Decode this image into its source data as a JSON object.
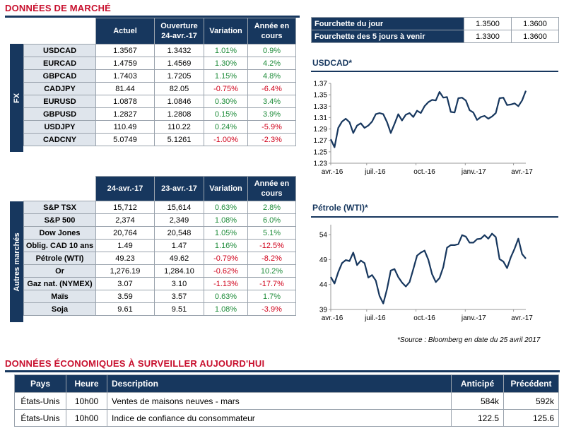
{
  "market_title": "DONNÉES DE MARCHÉ",
  "fx_label": "FX",
  "fx_headers": [
    "Actuel",
    "Ouverture\n24-avr.-17",
    "Variation",
    "Année en\ncours"
  ],
  "fx_rows": [
    {
      "name": "USDCAD",
      "actuel": "1.3567",
      "ouverture": "1.3432",
      "variation": "1.01%",
      "annee": "0.9%"
    },
    {
      "name": "EURCAD",
      "actuel": "1.4759",
      "ouverture": "1.4569",
      "variation": "1.30%",
      "annee": "4.2%"
    },
    {
      "name": "GBPCAD",
      "actuel": "1.7403",
      "ouverture": "1.7205",
      "variation": "1.15%",
      "annee": "4.8%"
    },
    {
      "name": "CADJPY",
      "actuel": "81.44",
      "ouverture": "82.05",
      "variation": "-0.75%",
      "annee": "-6.4%"
    },
    {
      "name": "EURUSD",
      "actuel": "1.0878",
      "ouverture": "1.0846",
      "variation": "0.30%",
      "annee": "3.4%"
    },
    {
      "name": "GBPUSD",
      "actuel": "1.2827",
      "ouverture": "1.2808",
      "variation": "0.15%",
      "annee": "3.9%"
    },
    {
      "name": "USDJPY",
      "actuel": "110.49",
      "ouverture": "110.22",
      "variation": "0.24%",
      "annee": "-5.9%"
    },
    {
      "name": "CADCNY",
      "actuel": "5.0749",
      "ouverture": "5.1261",
      "variation": "-1.00%",
      "annee": "-2.3%"
    }
  ],
  "other_label": "Autres marchés",
  "other_headers": [
    "24-avr.-17",
    "23-avr.-17",
    "Variation",
    "Année en\ncours"
  ],
  "other_rows": [
    {
      "name": "S&P TSX",
      "a": "15,712",
      "b": "15,614",
      "variation": "0.63%",
      "annee": "2.8%"
    },
    {
      "name": "S&P 500",
      "a": "2,374",
      "b": "2,349",
      "variation": "1.08%",
      "annee": "6.0%"
    },
    {
      "name": "Dow Jones",
      "a": "20,764",
      "b": "20,548",
      "variation": "1.05%",
      "annee": "5.1%"
    },
    {
      "name": "Oblig. CAD 10 ans",
      "a": "1.49",
      "b": "1.47",
      "variation": "1.16%",
      "annee": "-12.5%"
    },
    {
      "name": "Pétrole (WTI)",
      "a": "49.23",
      "b": "49.62",
      "variation": "-0.79%",
      "annee": "-8.2%"
    },
    {
      "name": "Or",
      "a": "1,276.19",
      "b": "1,284.10",
      "variation": "-0.62%",
      "annee": "10.2%"
    },
    {
      "name": "Gaz nat. (NYMEX)",
      "a": "3.07",
      "b": "3.10",
      "variation": "-1.13%",
      "annee": "-17.7%"
    },
    {
      "name": "Maïs",
      "a": "3.59",
      "b": "3.57",
      "variation": "0.63%",
      "annee": "1.7%"
    },
    {
      "name": "Soja",
      "a": "9.61",
      "b": "9.51",
      "variation": "1.08%",
      "annee": "-3.9%"
    }
  ],
  "ranges": [
    {
      "label": "Fourchette du jour",
      "low": "1.3500",
      "high": "1.3600"
    },
    {
      "label": "Fourchette des 5 jours à venir",
      "low": "1.3300",
      "high": "1.3600"
    }
  ],
  "source_note": "*Source : Bloomberg en date du  25 avril 2017",
  "eco_title": "DONNÉES ÉCONOMIQUES À SURVEILLER AUJOURD'HUI",
  "eco_headers": [
    "Pays",
    "Heure",
    "Description",
    "Anticipé",
    "Précédent"
  ],
  "eco_rows": [
    {
      "pays": "États-Unis",
      "heure": "10h00",
      "desc": "Ventes de maisons neuves - mars",
      "anticipe": "584k",
      "precedent": "592k"
    },
    {
      "pays": "États-Unis",
      "heure": "10h00",
      "desc": "Indice de confiance du consommateur",
      "anticipe": "122.5",
      "precedent": "125.6"
    }
  ],
  "colors": {
    "navy": "#17375e",
    "red_title": "#c8102e",
    "positive": "#1e8c3a",
    "negative": "#d0021b",
    "label_bg": "#dfe5ec"
  },
  "chart_data": [
    {
      "type": "line",
      "title": "USDCAD*",
      "xlabel": "",
      "ylabel": "",
      "x_ticks": [
        "avr.-16",
        "juil.-16",
        "oct.-16",
        "janv.-17",
        "avr.-17"
      ],
      "y_ticks": [
        1.23,
        1.25,
        1.27,
        1.29,
        1.31,
        1.33,
        1.35,
        1.37
      ],
      "ylim": [
        1.23,
        1.37
      ],
      "x": [
        "2016-04-25",
        "2016-05-02",
        "2016-05-09",
        "2016-05-16",
        "2016-05-23",
        "2016-05-30",
        "2016-06-06",
        "2016-06-13",
        "2016-06-20",
        "2016-06-27",
        "2016-07-04",
        "2016-07-11",
        "2016-07-18",
        "2016-07-25",
        "2016-08-01",
        "2016-08-08",
        "2016-08-15",
        "2016-08-22",
        "2016-08-29",
        "2016-09-05",
        "2016-09-12",
        "2016-09-19",
        "2016-09-26",
        "2016-10-03",
        "2016-10-10",
        "2016-10-17",
        "2016-10-24",
        "2016-10-31",
        "2016-11-07",
        "2016-11-14",
        "2016-11-21",
        "2016-11-28",
        "2016-12-05",
        "2016-12-12",
        "2016-12-19",
        "2016-12-26",
        "2017-01-02",
        "2017-01-09",
        "2017-01-16",
        "2017-01-23",
        "2017-01-30",
        "2017-02-06",
        "2017-02-13",
        "2017-02-20",
        "2017-02-27",
        "2017-03-06",
        "2017-03-13",
        "2017-03-20",
        "2017-03-27",
        "2017-04-03",
        "2017-04-10",
        "2017-04-17",
        "2017-04-24"
      ],
      "series": [
        {
          "values": [
            1.272,
            1.258,
            1.292,
            1.303,
            1.308,
            1.302,
            1.283,
            1.296,
            1.3,
            1.292,
            1.296,
            1.303,
            1.316,
            1.318,
            1.316,
            1.302,
            1.283,
            1.299,
            1.316,
            1.305,
            1.315,
            1.318,
            1.311,
            1.322,
            1.318,
            1.33,
            1.337,
            1.341,
            1.34,
            1.355,
            1.345,
            1.346,
            1.32,
            1.319,
            1.344,
            1.345,
            1.34,
            1.323,
            1.319,
            1.306,
            1.311,
            1.313,
            1.308,
            1.312,
            1.318,
            1.344,
            1.345,
            1.332,
            1.333,
            1.335,
            1.33,
            1.34,
            1.357
          ]
        }
      ]
    },
    {
      "type": "line",
      "title": "Pétrole (WTI)*",
      "xlabel": "",
      "ylabel": "",
      "x_ticks": [
        "avr.-16",
        "juil.-16",
        "oct.-16",
        "janv.-17",
        "avr.-17"
      ],
      "y_ticks": [
        39,
        44,
        49,
        54
      ],
      "ylim": [
        39,
        56
      ],
      "x": [
        "2016-04-25",
        "2016-05-02",
        "2016-05-09",
        "2016-05-16",
        "2016-05-23",
        "2016-05-30",
        "2016-06-06",
        "2016-06-13",
        "2016-06-20",
        "2016-06-27",
        "2016-07-04",
        "2016-07-11",
        "2016-07-18",
        "2016-07-25",
        "2016-08-01",
        "2016-08-08",
        "2016-08-15",
        "2016-08-22",
        "2016-08-29",
        "2016-09-05",
        "2016-09-12",
        "2016-09-19",
        "2016-09-26",
        "2016-10-03",
        "2016-10-10",
        "2016-10-17",
        "2016-10-24",
        "2016-10-31",
        "2016-11-07",
        "2016-11-14",
        "2016-11-21",
        "2016-11-28",
        "2016-12-05",
        "2016-12-12",
        "2016-12-19",
        "2016-12-26",
        "2017-01-02",
        "2017-01-09",
        "2017-01-16",
        "2017-01-23",
        "2017-01-30",
        "2017-02-06",
        "2017-02-13",
        "2017-02-20",
        "2017-02-27",
        "2017-03-06",
        "2017-03-13",
        "2017-03-20",
        "2017-03-27",
        "2017-04-03",
        "2017-04-10",
        "2017-04-17",
        "2017-04-24"
      ],
      "series": [
        {
          "values": [
            45.5,
            44.2,
            46.5,
            48.3,
            48.9,
            48.7,
            50.4,
            47.9,
            48.8,
            48.3,
            45.4,
            45.9,
            44.8,
            41.7,
            40.2,
            43.1,
            46.8,
            47.1,
            45.5,
            44.4,
            43.6,
            44.5,
            47.1,
            49.8,
            50.4,
            50.8,
            49.0,
            46.1,
            44.5,
            45.3,
            47.5,
            51.4,
            51.9,
            51.9,
            52.1,
            53.9,
            53.6,
            52.4,
            52.4,
            53.1,
            53.2,
            53.9,
            53.2,
            54.2,
            53.5,
            49.1,
            48.6,
            47.3,
            49.5,
            51.2,
            53.2,
            50.1,
            49.2
          ]
        }
      ]
    }
  ]
}
